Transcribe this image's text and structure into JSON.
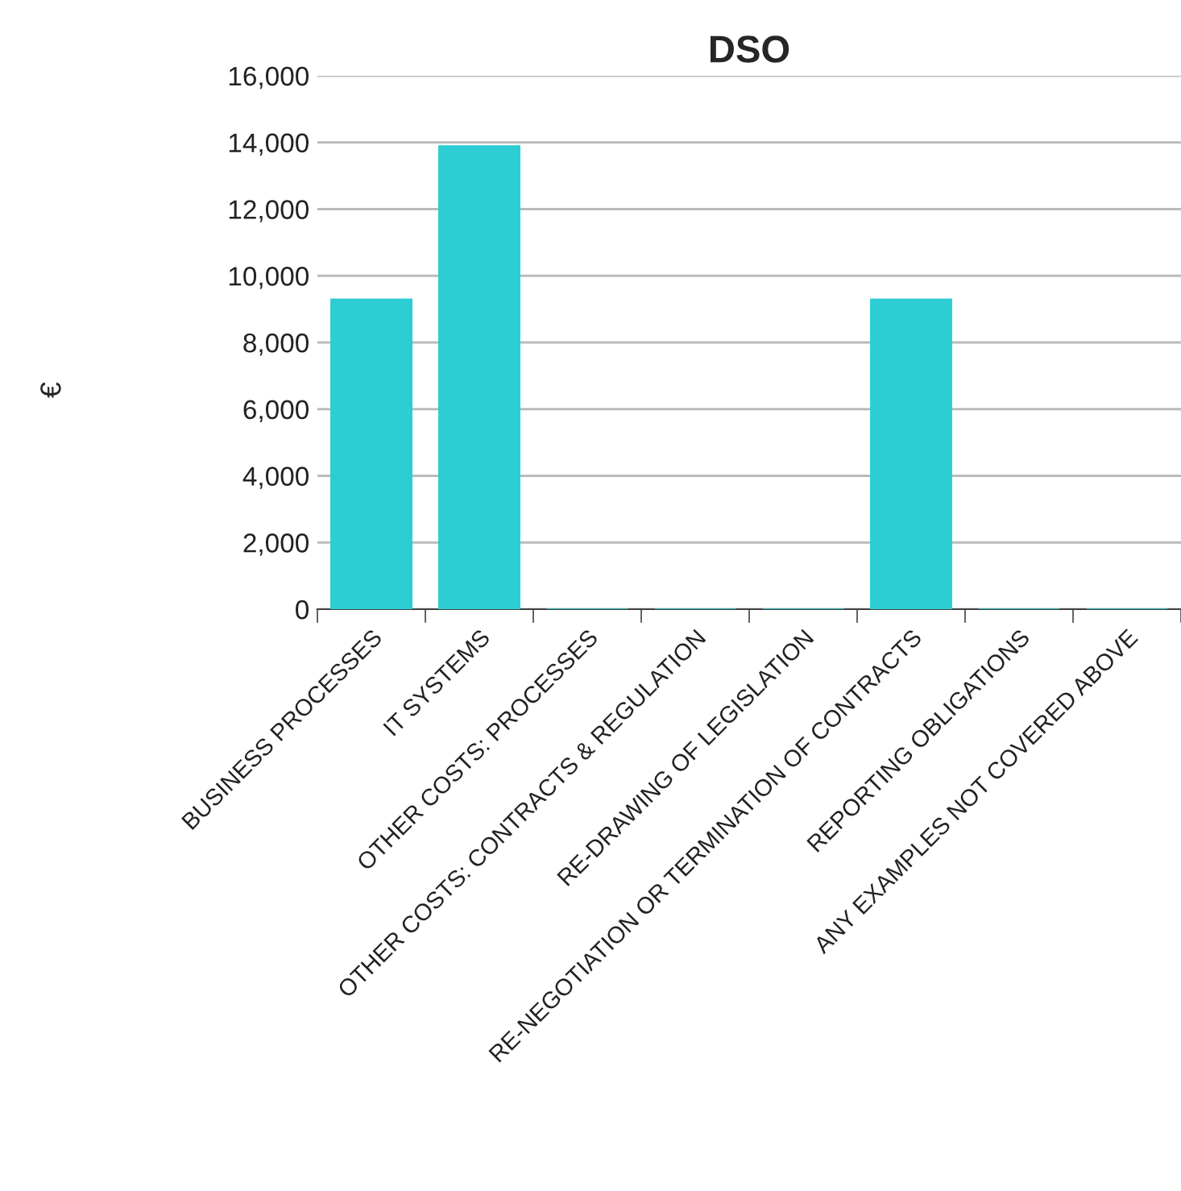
{
  "chart_data": {
    "type": "bar",
    "title": "DSO",
    "ylabel": "€",
    "categories": [
      "BUSINESS PROCESSES",
      "IT SYSTEMS",
      "OTHER COSTS: PROCESSES",
      "OTHER COSTS: CONTRACTS & REGULATION",
      "RE-DRAWING OF LEGISLATION",
      "RE-NEGOTIATION OR TERMINATION OF CONTRACTS",
      "REPORTING OBLIGATIONS",
      "ANY EXAMPLES NOT COVERED ABOVE"
    ],
    "values": [
      9300,
      13900,
      0,
      0,
      0,
      9300,
      0,
      0
    ],
    "color": "#2ccdd3",
    "ylim": [
      0,
      16000
    ],
    "yticks": [
      {
        "value": 0,
        "label": "0"
      },
      {
        "value": 2000,
        "label": "2,000"
      },
      {
        "value": 4000,
        "label": "4,000"
      },
      {
        "value": 6000,
        "label": "6,000"
      },
      {
        "value": 8000,
        "label": "8,000"
      },
      {
        "value": 10000,
        "label": "10,000"
      },
      {
        "value": 12000,
        "label": "12,000"
      },
      {
        "value": 14000,
        "label": "14,000"
      },
      {
        "value": 16000,
        "label": "16,000"
      }
    ],
    "grid": "y"
  }
}
